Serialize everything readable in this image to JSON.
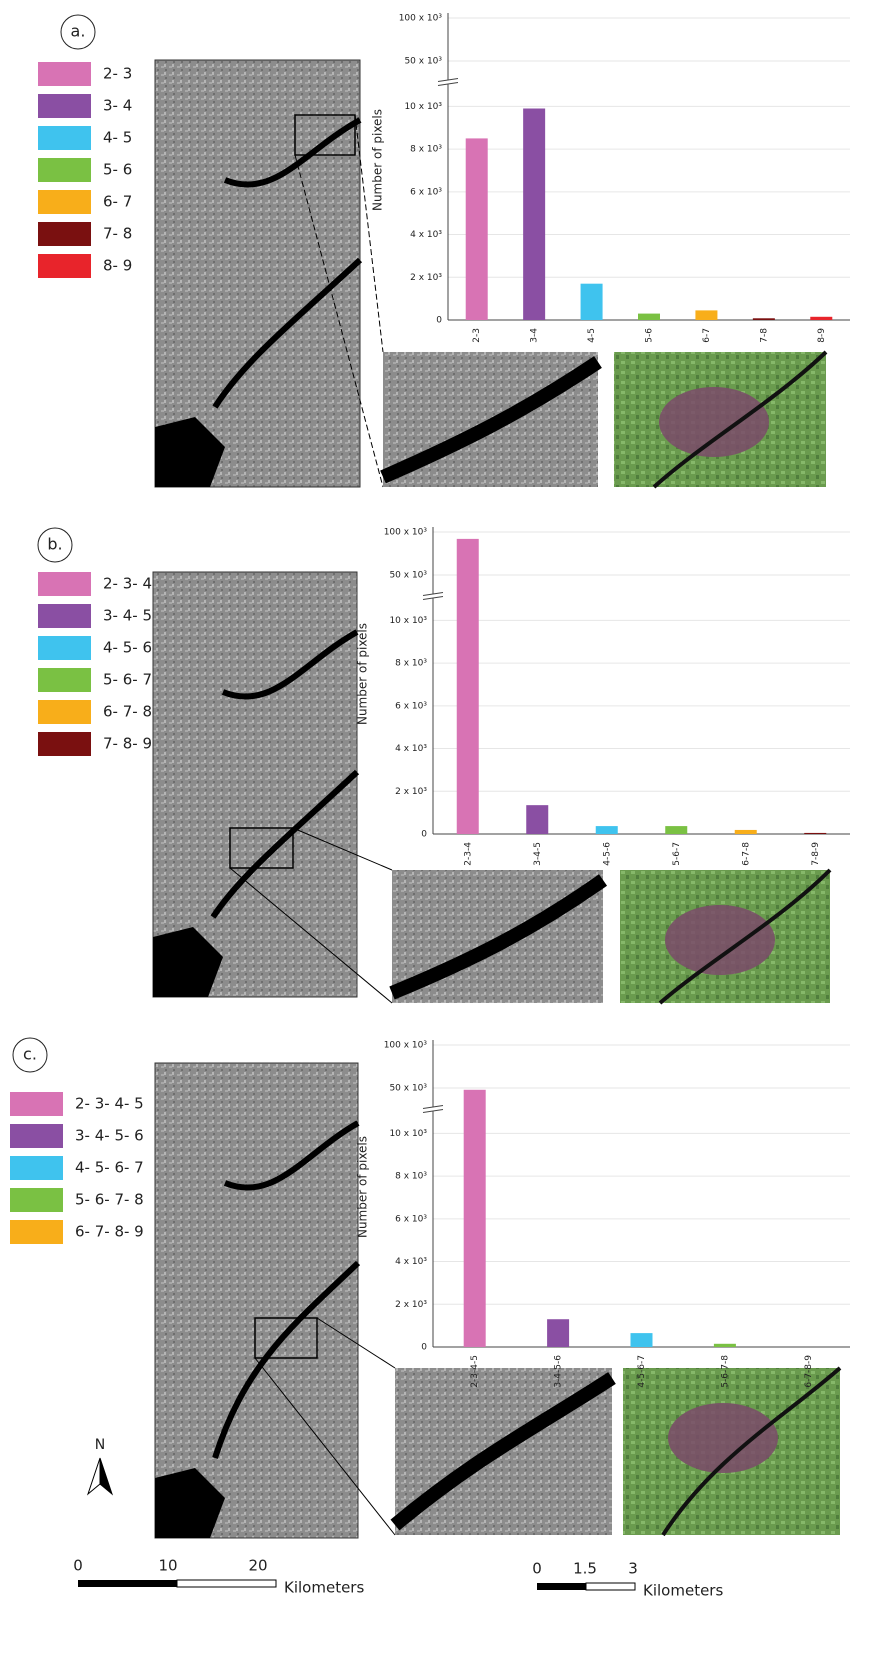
{
  "chart_data": [
    {
      "type": "bar",
      "panel_label": "a.",
      "ylabel": "Number of pixels",
      "categories": [
        "2-3",
        "3-4",
        "4-5",
        "5-6",
        "6-7",
        "7-8",
        "8-9"
      ],
      "legend": [
        "2- 3",
        "3- 4",
        "4- 5",
        "5- 6",
        "6- 7",
        "7- 8",
        "8- 9"
      ],
      "values": [
        8500,
        9900,
        1700,
        300,
        450,
        80,
        150
      ],
      "colors": [
        "#d873b4",
        "#8a4fa3",
        "#3fc3ee",
        "#7ac143",
        "#f8ae1a",
        "#7a1010",
        "#e8242b"
      ],
      "ylim": [
        0,
        100000
      ],
      "ybreak": [
        11000,
        28000
      ],
      "grid": true,
      "yticks": [
        0,
        {
          "value": 2000,
          "label": "2 x 10³"
        },
        {
          "value": 4000,
          "label": "4 x 10³"
        },
        {
          "value": 6000,
          "label": "6 x 10³"
        },
        {
          "value": 8000,
          "label": "8 x 10³"
        },
        {
          "value": 10000,
          "label": "10 x 10³"
        },
        {
          "value": 50000,
          "label": "50 x 10³"
        },
        {
          "value": 100000,
          "label": "100 x 10³"
        }
      ]
    },
    {
      "type": "bar",
      "panel_label": "b.",
      "ylabel": "Number of pixels",
      "categories": [
        "2-3-4",
        "3-4-5",
        "4-5-6",
        "5-6-7",
        "6-7-8",
        "7-8-9"
      ],
      "legend": [
        "2- 3- 4",
        "3- 4- 5",
        "4- 5- 6",
        "5- 6- 7",
        "6- 7- 8",
        "7- 8- 9"
      ],
      "values": [
        92000,
        1350,
        370,
        370,
        190,
        50
      ],
      "colors": [
        "#d873b4",
        "#8a4fa3",
        "#3fc3ee",
        "#7ac143",
        "#f8ae1a",
        "#7a1010"
      ],
      "ylim": [
        0,
        100000
      ],
      "ybreak": [
        11000,
        28000
      ],
      "grid": true,
      "yticks": [
        0,
        {
          "value": 2000,
          "label": "2 x 10³"
        },
        {
          "value": 4000,
          "label": "4 x 10³"
        },
        {
          "value": 6000,
          "label": "6 x 10³"
        },
        {
          "value": 8000,
          "label": "8 x 10³"
        },
        {
          "value": 10000,
          "label": "10 x 10³"
        },
        {
          "value": 50000,
          "label": "50 x 10³"
        },
        {
          "value": 100000,
          "label": "100 x 10³"
        }
      ]
    },
    {
      "type": "bar",
      "panel_label": "c.",
      "ylabel": "Number of pixels",
      "categories": [
        "2-3-4-5",
        "3-4-5-6",
        "4-5-6-7",
        "5-6-7-8",
        "6-7-8-9"
      ],
      "legend": [
        "2- 3- 4- 5",
        "3- 4- 5- 6",
        "4- 5- 6- 7",
        "5- 6- 7- 8",
        "6- 7- 8- 9"
      ],
      "values": [
        48000,
        1300,
        650,
        150,
        0
      ],
      "colors": [
        "#d873b4",
        "#8a4fa3",
        "#3fc3ee",
        "#7ac143",
        "#f8ae1a"
      ],
      "ylim": [
        0,
        100000
      ],
      "ybreak": [
        11000,
        28000
      ],
      "grid": true,
      "yticks": [
        0,
        {
          "value": 2000,
          "label": "2 x 10³"
        },
        {
          "value": 4000,
          "label": "4 x 10³"
        },
        {
          "value": 6000,
          "label": "6 x 10³"
        },
        {
          "value": 8000,
          "label": "8 x 10³"
        },
        {
          "value": 10000,
          "label": "10 x 10³"
        },
        {
          "value": 50000,
          "label": "50 x 10³"
        },
        {
          "value": 100000,
          "label": "100 x 10³"
        }
      ]
    }
  ],
  "north": "N",
  "map_scale_bar": {
    "ticks": [
      0,
      10,
      20
    ],
    "unit": "Kilometers"
  },
  "inset_scale_bar": {
    "ticks": [
      0,
      1.5,
      3
    ],
    "unit": "Kilometers"
  }
}
